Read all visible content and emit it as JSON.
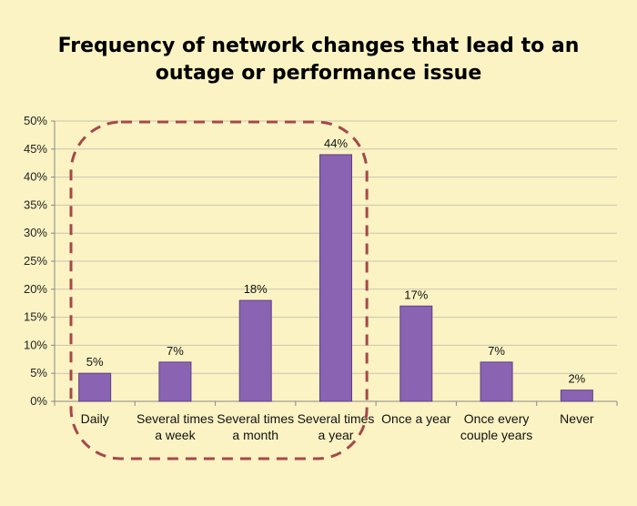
{
  "chart_data": {
    "type": "bar",
    "title_lines": [
      "Frequency of network changes that lead to an",
      "outage or performance issue"
    ],
    "categories": [
      [
        "Daily"
      ],
      [
        "Several times",
        "a week"
      ],
      [
        "Several times",
        "a month"
      ],
      [
        "Several times",
        "a year"
      ],
      [
        "Once a year"
      ],
      [
        "Once every",
        "couple years"
      ],
      [
        "Never"
      ]
    ],
    "values": [
      5,
      7,
      18,
      44,
      17,
      7,
      2
    ],
    "data_labels": [
      "5%",
      "7%",
      "18%",
      "44%",
      "17%",
      "7%",
      "2%"
    ],
    "y_ticks": [
      "0%",
      "5%",
      "10%",
      "15%",
      "20%",
      "25%",
      "30%",
      "35%",
      "40%",
      "45%",
      "50%"
    ],
    "ylim": [
      0,
      50
    ],
    "grid": true,
    "legend": "none",
    "highlight": {
      "categories": [
        0,
        1,
        2,
        3
      ],
      "style": "dashed-rounded-outline"
    },
    "colors": {
      "background": "#fbf3c3",
      "bar": "#8a63b3",
      "bar_edge": "#5e3f86",
      "grid": "#c9c5b0",
      "highlight": "#a5484a"
    }
  }
}
